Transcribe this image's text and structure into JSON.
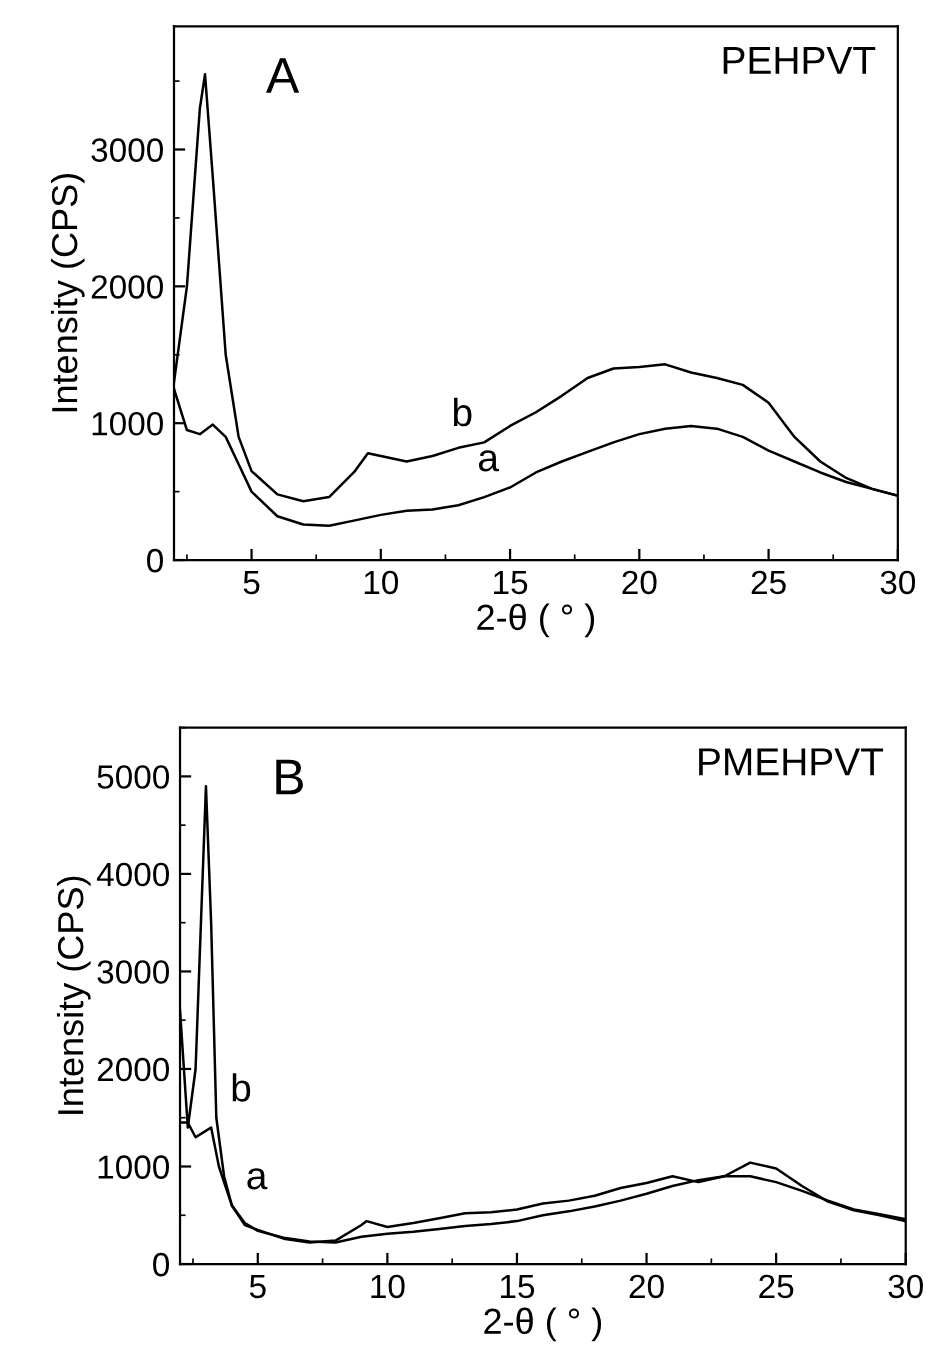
{
  "chart_data": [
    {
      "type": "line",
      "title": "PEHPVT",
      "xlabel": "2-θ ( ° )",
      "ylabel": "Intensity (CPS)",
      "xlim": [
        2,
        30
      ],
      "ylim": [
        0,
        3900
      ],
      "xticks": [
        5,
        10,
        15,
        20,
        25,
        30
      ],
      "yticks": [
        0,
        1000,
        2000,
        3000
      ],
      "grid": false,
      "legend": false,
      "annotations": [
        "A",
        {
          "text": "b",
          "x": 14,
          "y": 860
        },
        {
          "text": "a",
          "x": 15,
          "y": 530
        }
      ],
      "series": [
        {
          "color": "#000000",
          "x": [
            2,
            2.5,
            3,
            3.5,
            4,
            4.5,
            5,
            6,
            7,
            8,
            9,
            10,
            11,
            12,
            13,
            14,
            15,
            16,
            17,
            18,
            19,
            20,
            21,
            22,
            23,
            24,
            25,
            26,
            27,
            28,
            29,
            30
          ],
          "values": [
            1250,
            950,
            920,
            990,
            900,
            700,
            500,
            320,
            260,
            250,
            290,
            330,
            360,
            370,
            400,
            460,
            530,
            640,
            720,
            790,
            860,
            920,
            960,
            980,
            960,
            900,
            800,
            720,
            640,
            570,
            520,
            470
          ]
        },
        {
          "color": "#000000",
          "x": [
            2,
            2.5,
            3,
            3.2,
            3.5,
            4,
            4.5,
            5,
            6,
            7,
            8,
            9,
            9.5,
            10,
            11,
            12,
            13,
            14,
            15,
            16,
            17,
            18,
            19,
            20,
            21,
            22,
            23,
            24,
            25,
            26,
            27,
            28,
            29,
            30
          ],
          "values": [
            1300,
            2000,
            3300,
            3550,
            2800,
            1500,
            900,
            650,
            480,
            430,
            460,
            650,
            780,
            760,
            720,
            760,
            820,
            860,
            980,
            1080,
            1200,
            1330,
            1400,
            1410,
            1430,
            1370,
            1330,
            1280,
            1150,
            900,
            720,
            600,
            520,
            470
          ]
        }
      ]
    },
    {
      "type": "line",
      "title": "PMEHPVT",
      "xlabel": "2-θ ( ° )",
      "ylabel": "Intensity (CPS)",
      "xlim": [
        2,
        30
      ],
      "ylim": [
        0,
        5500
      ],
      "xticks": [
        5,
        10,
        15,
        20,
        25,
        30
      ],
      "yticks": [
        0,
        1000,
        2000,
        3000,
        4000,
        5000
      ],
      "grid": false,
      "legend": false,
      "annotations": [
        "B",
        {
          "text": "b",
          "x": 3.4,
          "y": 1500
        },
        {
          "text": "a",
          "x": 4,
          "y": 600
        }
      ],
      "series": [
        {
          "color": "#000000",
          "x": [
            2,
            2.3,
            2.6,
            2.9,
            3.2,
            3.5,
            4,
            4.5,
            5,
            6,
            7,
            8,
            9,
            10,
            11,
            12,
            13,
            14,
            15,
            16,
            17,
            18,
            19,
            20,
            21,
            22,
            23,
            24,
            25,
            26,
            27,
            28,
            29,
            30
          ],
          "values": [
            1450,
            1450,
            1300,
            1350,
            1400,
            1000,
            600,
            420,
            340,
            270,
            230,
            220,
            280,
            310,
            330,
            360,
            390,
            410,
            440,
            500,
            540,
            590,
            650,
            720,
            800,
            860,
            900,
            900,
            840,
            750,
            650,
            560,
            510,
            460
          ]
        },
        {
          "color": "#000000",
          "x": [
            2,
            2.3,
            2.6,
            3,
            3.2,
            3.4,
            3.7,
            4,
            4.5,
            5,
            6,
            7,
            8,
            9,
            9.2,
            10,
            11,
            12,
            13,
            14,
            15,
            16,
            17,
            18,
            19,
            20,
            21,
            22,
            23,
            24,
            25,
            26,
            27,
            28,
            29,
            30
          ],
          "values": [
            2600,
            1400,
            2000,
            4900,
            3500,
            1500,
            900,
            600,
            400,
            350,
            260,
            220,
            240,
            400,
            440,
            380,
            420,
            470,
            520,
            530,
            560,
            620,
            650,
            700,
            780,
            830,
            900,
            840,
            900,
            1040,
            980,
            800,
            640,
            550,
            500,
            440
          ]
        }
      ]
    }
  ]
}
